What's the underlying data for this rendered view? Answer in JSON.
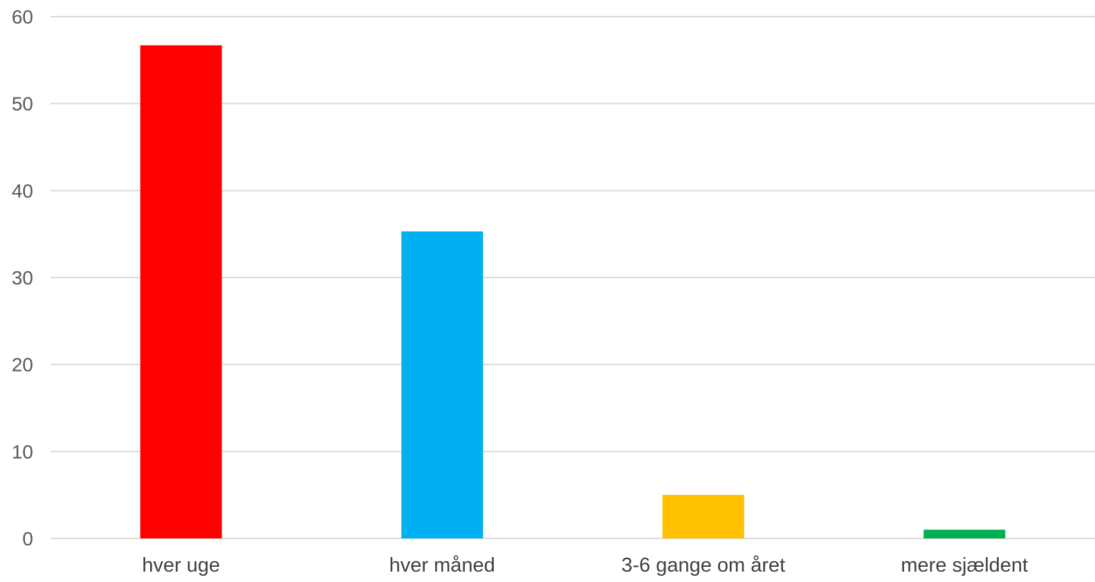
{
  "chart_data": {
    "type": "bar",
    "categories": [
      "hver uge",
      "hver måned",
      "3-6 gange om året",
      "mere sjældent"
    ],
    "values": [
      56.7,
      35.3,
      5.0,
      1.0
    ],
    "colors": [
      "#FF0000",
      "#00B0F0",
      "#FFC000",
      "#00B050"
    ],
    "ylim": [
      0,
      60
    ],
    "yticks": [
      "0",
      "10",
      "20",
      "30",
      "40",
      "50",
      "60"
    ],
    "grid": true,
    "gridline_color": "#D9D9D9",
    "legend": "none"
  }
}
